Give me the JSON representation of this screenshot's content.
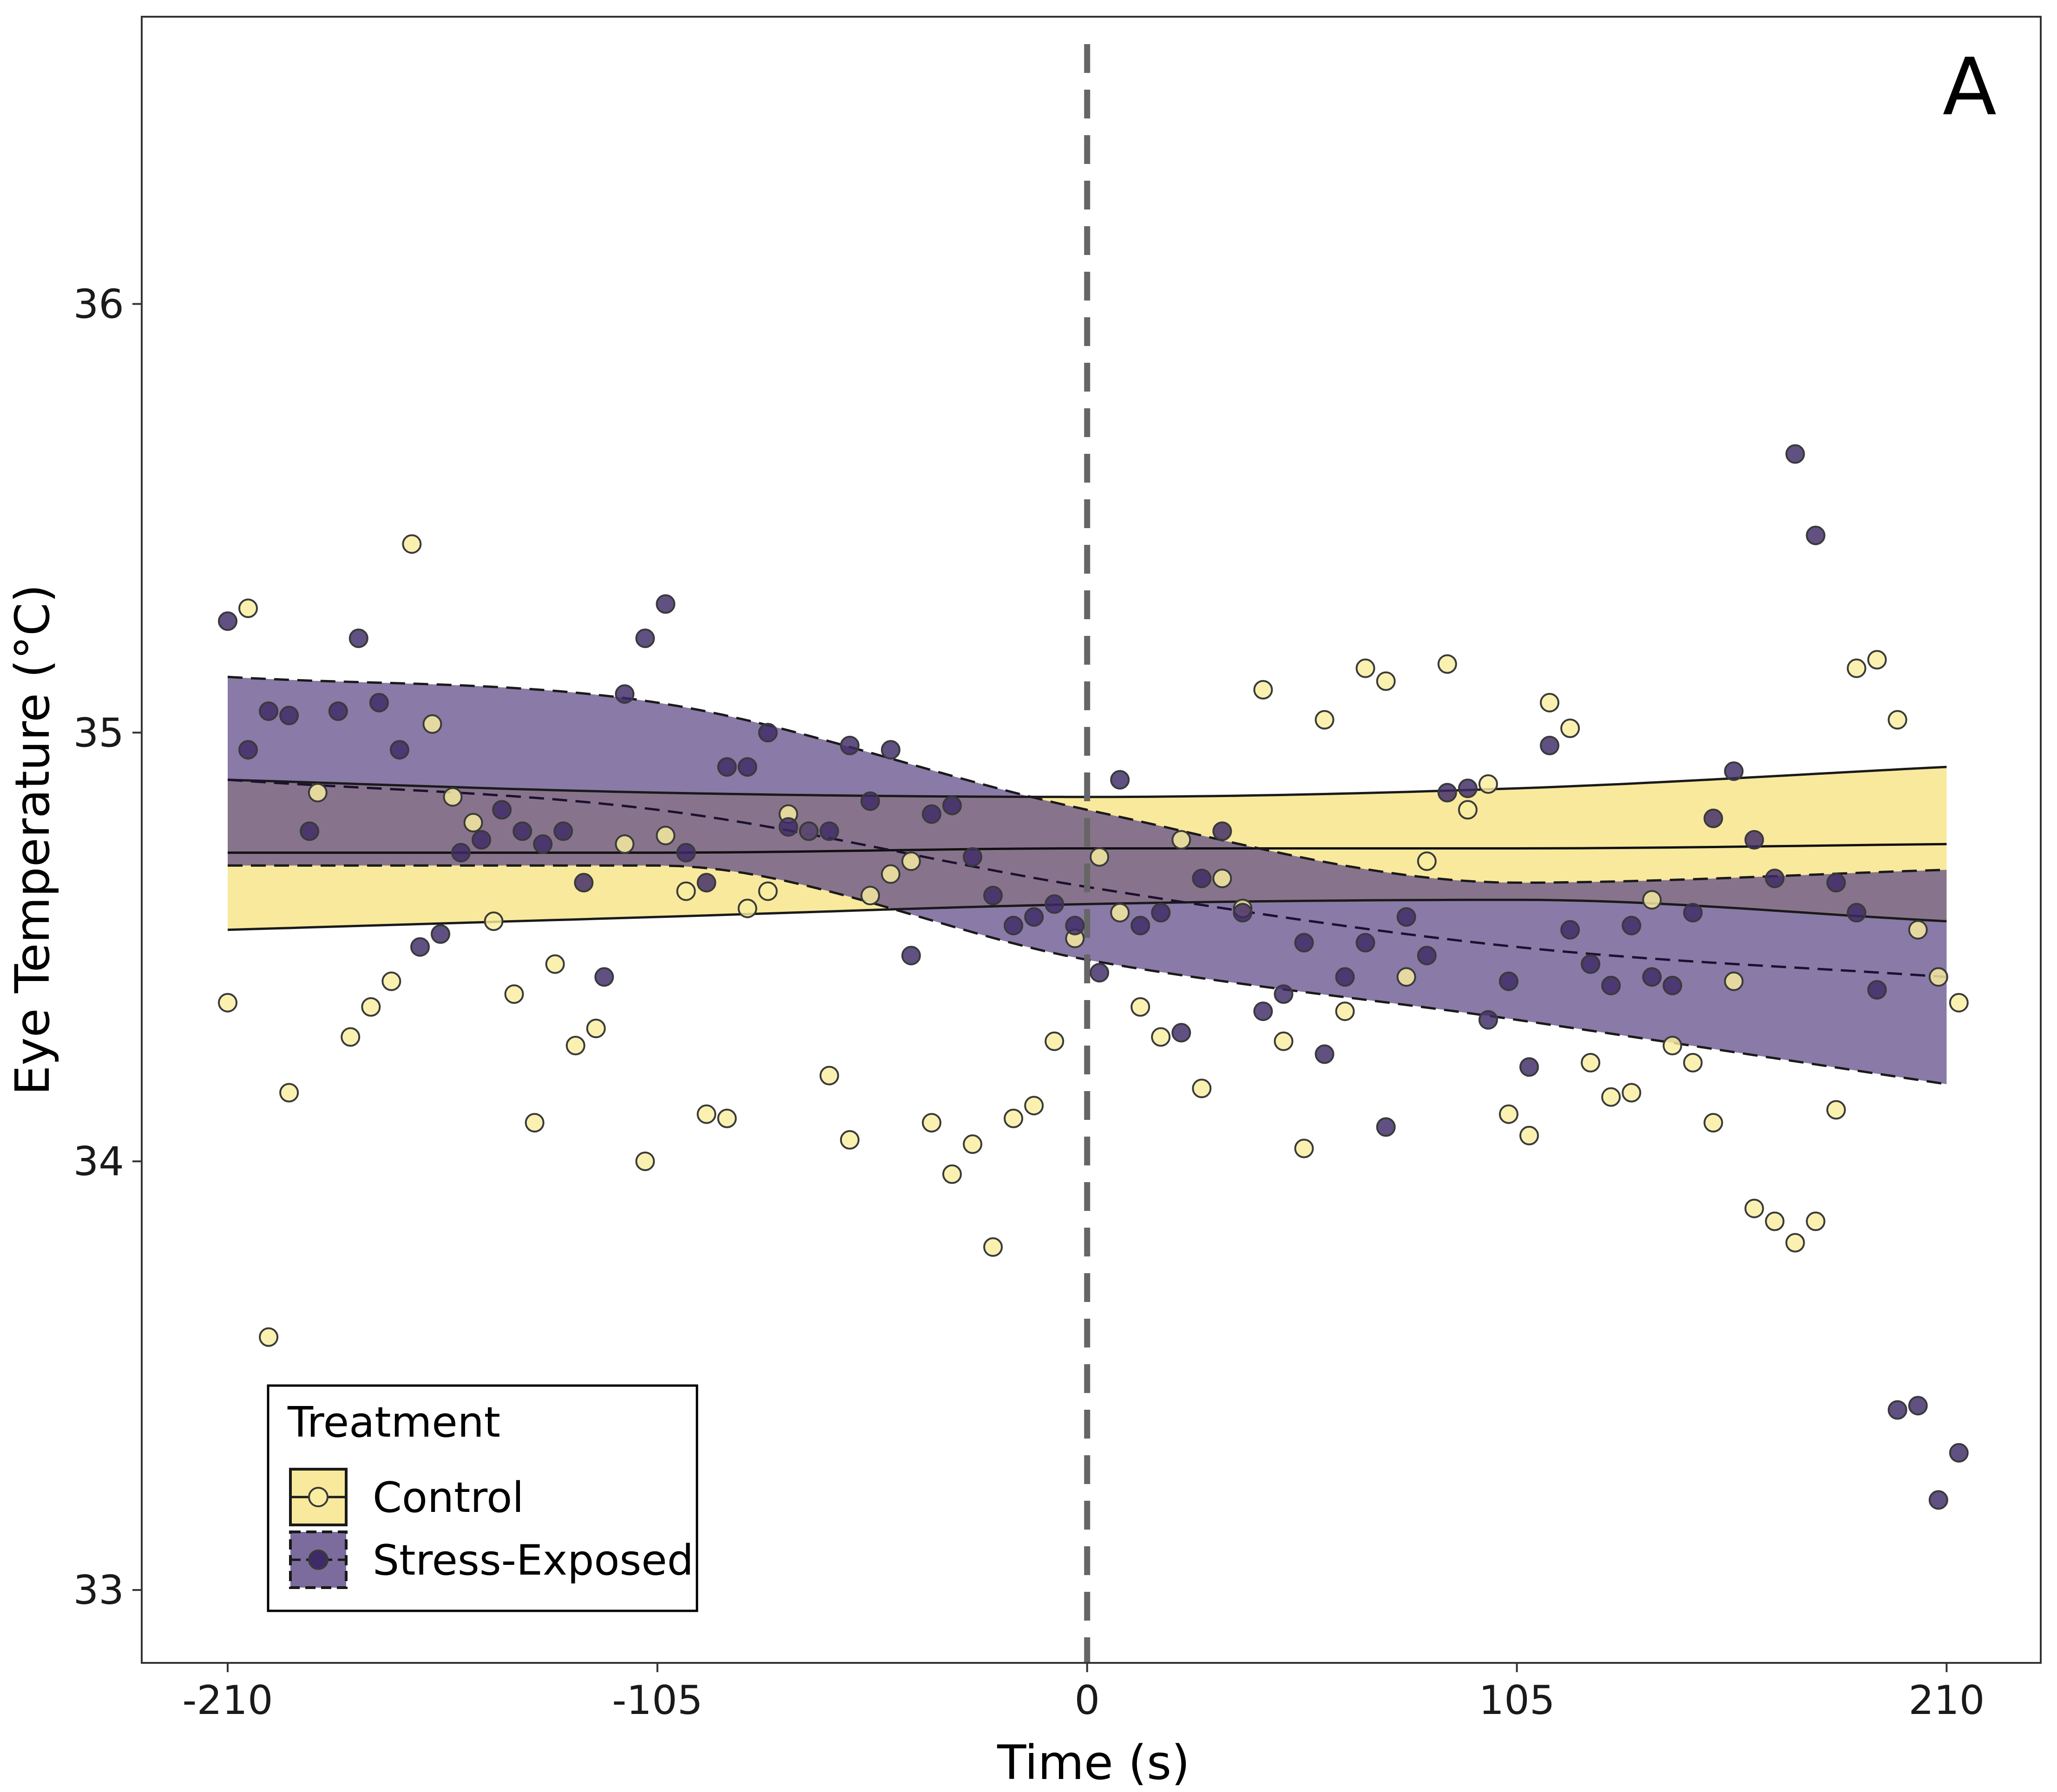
{
  "chart_data": {
    "type": "scatter",
    "panel_label": "A",
    "xlabel": "Time (s)",
    "ylabel": "Eye Temperature (°C)",
    "xlim": [
      -231,
      233
    ],
    "ylim": [
      32.83,
      36.67
    ],
    "x_ticks": [
      -210,
      -105,
      0,
      105,
      210
    ],
    "x_tick_labels": [
      "-210",
      "-105",
      "0",
      "105",
      "210"
    ],
    "y_ticks": [
      33,
      34,
      35,
      36
    ],
    "y_tick_labels": [
      "33",
      "34",
      "35",
      "36"
    ],
    "grid": false,
    "vline": {
      "x": 0,
      "style": "dashed",
      "color": "#666666"
    },
    "legend": {
      "title": "Treatment",
      "position": "bottom-left",
      "entries": [
        "Control",
        "Stress-Exposed"
      ]
    },
    "series": [
      {
        "name": "Control",
        "color": "#f9eea0",
        "band_color": "#f7e58c",
        "band_opacity": 0.85,
        "line_style": "solid",
        "trend": {
          "x": [
            -210,
            -105,
            0,
            105,
            210
          ],
          "y": [
            34.72,
            34.72,
            34.73,
            34.73,
            34.74
          ]
        },
        "band_upper": {
          "x": [
            -210,
            -105,
            0,
            105,
            210
          ],
          "y": [
            34.89,
            34.86,
            34.85,
            34.87,
            34.92
          ]
        },
        "band_lower": {
          "x": [
            -210,
            -105,
            0,
            105,
            210
          ],
          "y": [
            34.54,
            34.57,
            34.6,
            34.61,
            34.56
          ]
        },
        "points": [
          [
            -210,
            34.37
          ],
          [
            -205,
            35.29
          ],
          [
            -200,
            33.59
          ],
          [
            -195,
            34.16
          ],
          [
            -188,
            34.86
          ],
          [
            -180,
            34.29
          ],
          [
            -175,
            34.36
          ],
          [
            -170,
            34.42
          ],
          [
            -165,
            35.44
          ],
          [
            -160,
            35.02
          ],
          [
            -155,
            34.85
          ],
          [
            -150,
            34.79
          ],
          [
            -145,
            34.56
          ],
          [
            -140,
            34.39
          ],
          [
            -135,
            34.09
          ],
          [
            -130,
            34.46
          ],
          [
            -125,
            34.27
          ],
          [
            -120,
            34.31
          ],
          [
            -113,
            34.74
          ],
          [
            -108,
            34.0
          ],
          [
            -103,
            34.76
          ],
          [
            -98,
            34.63
          ],
          [
            -93,
            34.11
          ],
          [
            -88,
            34.1
          ],
          [
            -83,
            34.59
          ],
          [
            -78,
            34.63
          ],
          [
            -73,
            34.81
          ],
          [
            -68,
            34.77
          ],
          [
            -63,
            34.2
          ],
          [
            -58,
            34.05
          ],
          [
            -53,
            34.62
          ],
          [
            -48,
            34.67
          ],
          [
            -43,
            34.7
          ],
          [
            -38,
            34.09
          ],
          [
            -33,
            33.97
          ],
          [
            -28,
            34.04
          ],
          [
            -23,
            33.8
          ],
          [
            -18,
            34.1
          ],
          [
            -13,
            34.13
          ],
          [
            -8,
            34.28
          ],
          [
            -3,
            34.52
          ],
          [
            3,
            34.71
          ],
          [
            8,
            34.58
          ],
          [
            13,
            34.36
          ],
          [
            18,
            34.29
          ],
          [
            23,
            34.75
          ],
          [
            28,
            34.17
          ],
          [
            33,
            34.66
          ],
          [
            38,
            34.59
          ],
          [
            43,
            35.1
          ],
          [
            48,
            34.28
          ],
          [
            53,
            34.03
          ],
          [
            58,
            35.03
          ],
          [
            63,
            34.35
          ],
          [
            68,
            35.15
          ],
          [
            73,
            35.12
          ],
          [
            78,
            34.43
          ],
          [
            83,
            34.7
          ],
          [
            88,
            35.16
          ],
          [
            93,
            34.82
          ],
          [
            98,
            34.88
          ],
          [
            103,
            34.11
          ],
          [
            108,
            34.06
          ],
          [
            113,
            35.07
          ],
          [
            118,
            35.01
          ],
          [
            123,
            34.23
          ],
          [
            128,
            34.15
          ],
          [
            133,
            34.16
          ],
          [
            138,
            34.61
          ],
          [
            143,
            34.27
          ],
          [
            148,
            34.23
          ],
          [
            153,
            34.09
          ],
          [
            158,
            34.42
          ],
          [
            163,
            33.89
          ],
          [
            168,
            33.86
          ],
          [
            173,
            33.81
          ],
          [
            178,
            33.86
          ],
          [
            183,
            34.12
          ],
          [
            188,
            35.15
          ],
          [
            193,
            35.17
          ],
          [
            198,
            35.03
          ],
          [
            203,
            34.54
          ],
          [
            208,
            34.43
          ],
          [
            213,
            34.37
          ]
        ]
      },
      {
        "name": "Stress-Exposed",
        "color": "#3e2a66",
        "band_color": "#5b4785",
        "band_opacity": 0.72,
        "line_style": "dashed",
        "trend": {
          "x": [
            -210,
            -105,
            0,
            105,
            210
          ],
          "y": [
            34.89,
            34.82,
            34.64,
            34.5,
            34.43
          ]
        },
        "band_upper": {
          "x": [
            -210,
            -105,
            0,
            105,
            210
          ],
          "y": [
            35.13,
            35.07,
            34.82,
            34.65,
            34.68
          ]
        },
        "band_lower": {
          "x": [
            -210,
            -105,
            0,
            105,
            210
          ],
          "y": [
            34.69,
            34.69,
            34.47,
            34.33,
            34.18
          ]
        },
        "points": [
          [
            -210,
            35.26
          ],
          [
            -205,
            34.96
          ],
          [
            -200,
            35.05
          ],
          [
            -195,
            35.04
          ],
          [
            -190,
            34.77
          ],
          [
            -183,
            35.05
          ],
          [
            -178,
            35.22
          ],
          [
            -173,
            35.07
          ],
          [
            -168,
            34.96
          ],
          [
            -163,
            34.5
          ],
          [
            -158,
            34.53
          ],
          [
            -153,
            34.72
          ],
          [
            -148,
            34.75
          ],
          [
            -143,
            34.82
          ],
          [
            -138,
            34.77
          ],
          [
            -133,
            34.74
          ],
          [
            -128,
            34.77
          ],
          [
            -123,
            34.65
          ],
          [
            -118,
            34.43
          ],
          [
            -113,
            35.09
          ],
          [
            -108,
            35.22
          ],
          [
            -103,
            35.3
          ],
          [
            -98,
            34.72
          ],
          [
            -93,
            34.65
          ],
          [
            -88,
            34.92
          ],
          [
            -83,
            34.92
          ],
          [
            -78,
            35.0
          ],
          [
            -73,
            34.78
          ],
          [
            -68,
            34.77
          ],
          [
            -63,
            34.77
          ],
          [
            -58,
            34.97
          ],
          [
            -53,
            34.84
          ],
          [
            -48,
            34.96
          ],
          [
            -43,
            34.48
          ],
          [
            -38,
            34.81
          ],
          [
            -33,
            34.83
          ],
          [
            -28,
            34.71
          ],
          [
            -23,
            34.62
          ],
          [
            -18,
            34.55
          ],
          [
            -13,
            34.57
          ],
          [
            -8,
            34.6
          ],
          [
            -3,
            34.55
          ],
          [
            3,
            34.44
          ],
          [
            8,
            34.89
          ],
          [
            13,
            34.55
          ],
          [
            18,
            34.58
          ],
          [
            23,
            34.3
          ],
          [
            28,
            34.66
          ],
          [
            33,
            34.77
          ],
          [
            38,
            34.58
          ],
          [
            43,
            34.35
          ],
          [
            48,
            34.39
          ],
          [
            53,
            34.51
          ],
          [
            58,
            34.25
          ],
          [
            63,
            34.43
          ],
          [
            68,
            34.51
          ],
          [
            73,
            34.08
          ],
          [
            78,
            34.57
          ],
          [
            83,
            34.48
          ],
          [
            88,
            34.86
          ],
          [
            93,
            34.87
          ],
          [
            98,
            34.33
          ],
          [
            103,
            34.42
          ],
          [
            108,
            34.22
          ],
          [
            113,
            34.97
          ],
          [
            118,
            34.54
          ],
          [
            123,
            34.46
          ],
          [
            128,
            34.41
          ],
          [
            133,
            34.55
          ],
          [
            138,
            34.43
          ],
          [
            143,
            34.41
          ],
          [
            148,
            34.58
          ],
          [
            153,
            34.8
          ],
          [
            158,
            34.91
          ],
          [
            163,
            34.75
          ],
          [
            168,
            34.66
          ],
          [
            173,
            35.65
          ],
          [
            178,
            35.46
          ],
          [
            183,
            34.65
          ],
          [
            188,
            34.58
          ],
          [
            193,
            34.4
          ],
          [
            198,
            33.42
          ],
          [
            203,
            33.43
          ],
          [
            208,
            33.21
          ],
          [
            213,
            33.32
          ]
        ]
      }
    ]
  }
}
